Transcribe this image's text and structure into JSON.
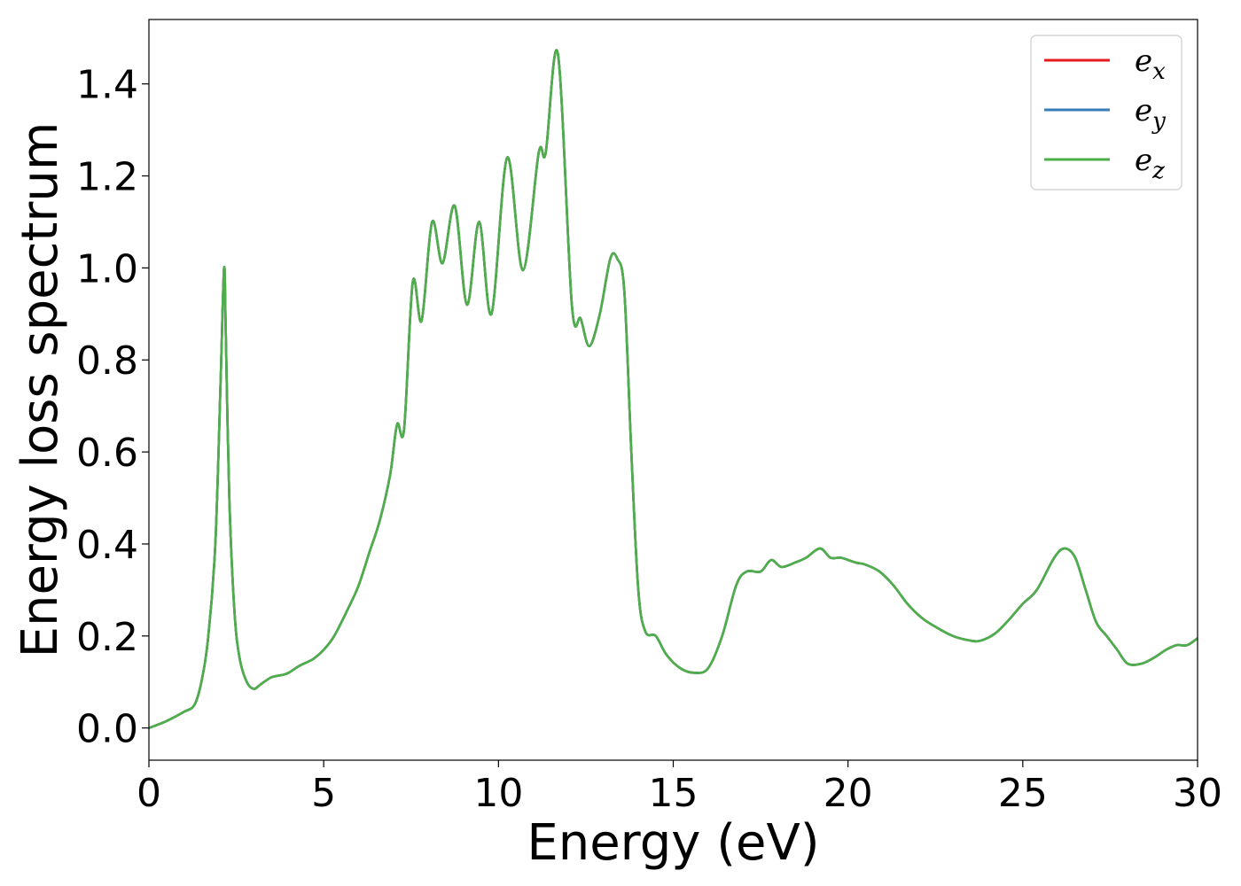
{
  "chart_data": {
    "type": "line",
    "title": "",
    "xlabel": "Energy (eV)",
    "ylabel": "Energy loss spectrum",
    "xlim": [
      0,
      30
    ],
    "ylim": [
      -0.07,
      1.54
    ],
    "xticks": [
      0,
      5,
      10,
      15,
      20,
      25,
      30
    ],
    "xtick_labels": [
      "0",
      "5",
      "10",
      "15",
      "20",
      "25",
      "30"
    ],
    "yticks": [
      0.0,
      0.2,
      0.4,
      0.6,
      0.8,
      1.0,
      1.2,
      1.4
    ],
    "ytick_labels": [
      "0.0",
      "0.2",
      "0.4",
      "0.6",
      "0.8",
      "1.0",
      "1.2",
      "1.4"
    ],
    "grid": false,
    "legend_position": "top-right",
    "x": [
      0.0,
      0.5,
      1.0,
      1.3,
      1.5,
      1.7,
      1.9,
      2.05,
      2.15,
      2.2,
      2.3,
      2.45,
      2.6,
      2.8,
      3.0,
      3.2,
      3.5,
      3.8,
      4.0,
      4.3,
      4.7,
      5.0,
      5.3,
      5.7,
      6.0,
      6.3,
      6.6,
      6.9,
      7.1,
      7.3,
      7.55,
      7.8,
      8.1,
      8.4,
      8.75,
      9.1,
      9.45,
      9.8,
      10.25,
      10.7,
      11.15,
      11.35,
      11.7,
      12.1,
      12.35,
      12.6,
      12.9,
      13.2,
      13.4,
      13.6,
      13.8,
      14.0,
      14.2,
      14.5,
      14.8,
      15.2,
      15.6,
      16.0,
      16.4,
      16.8,
      17.1,
      17.5,
      17.8,
      18.1,
      18.5,
      18.8,
      19.2,
      19.5,
      19.8,
      20.2,
      20.5,
      20.9,
      21.3,
      21.7,
      22.1,
      22.5,
      23.0,
      23.5,
      23.8,
      24.2,
      24.6,
      25.0,
      25.4,
      25.9,
      26.2,
      26.5,
      26.8,
      27.1,
      27.4,
      27.7,
      28.0,
      28.4,
      28.8,
      29.1,
      29.4,
      29.7,
      30.0
    ],
    "series": [
      {
        "name": "e_x",
        "color": "#e41a1c",
        "values": [
          0.0,
          0.015,
          0.035,
          0.05,
          0.1,
          0.2,
          0.4,
          0.75,
          1.0,
          0.85,
          0.5,
          0.25,
          0.15,
          0.1,
          0.085,
          0.095,
          0.11,
          0.115,
          0.12,
          0.135,
          0.15,
          0.17,
          0.2,
          0.26,
          0.31,
          0.38,
          0.45,
          0.55,
          0.66,
          0.65,
          0.97,
          0.885,
          1.1,
          1.01,
          1.135,
          0.92,
          1.1,
          0.9,
          1.24,
          0.995,
          1.25,
          1.25,
          1.465,
          0.92,
          0.89,
          0.83,
          0.9,
          1.02,
          1.02,
          0.95,
          0.6,
          0.3,
          0.21,
          0.2,
          0.16,
          0.13,
          0.12,
          0.13,
          0.2,
          0.31,
          0.34,
          0.34,
          0.365,
          0.35,
          0.36,
          0.37,
          0.39,
          0.37,
          0.37,
          0.36,
          0.355,
          0.34,
          0.31,
          0.27,
          0.24,
          0.22,
          0.2,
          0.19,
          0.19,
          0.205,
          0.235,
          0.27,
          0.3,
          0.37,
          0.39,
          0.37,
          0.3,
          0.23,
          0.2,
          0.17,
          0.14,
          0.14,
          0.155,
          0.17,
          0.18,
          0.18,
          0.195
        ]
      },
      {
        "name": "e_y",
        "color": "#377eb8",
        "values": [
          0.0,
          0.015,
          0.035,
          0.05,
          0.1,
          0.2,
          0.4,
          0.75,
          1.0,
          0.85,
          0.5,
          0.25,
          0.15,
          0.1,
          0.085,
          0.095,
          0.11,
          0.115,
          0.12,
          0.135,
          0.15,
          0.17,
          0.2,
          0.26,
          0.31,
          0.38,
          0.45,
          0.55,
          0.66,
          0.65,
          0.97,
          0.885,
          1.1,
          1.01,
          1.135,
          0.92,
          1.1,
          0.9,
          1.24,
          0.995,
          1.25,
          1.25,
          1.465,
          0.92,
          0.89,
          0.83,
          0.9,
          1.02,
          1.02,
          0.95,
          0.6,
          0.3,
          0.21,
          0.2,
          0.16,
          0.13,
          0.12,
          0.13,
          0.2,
          0.31,
          0.34,
          0.34,
          0.365,
          0.35,
          0.36,
          0.37,
          0.39,
          0.37,
          0.37,
          0.36,
          0.355,
          0.34,
          0.31,
          0.27,
          0.24,
          0.22,
          0.2,
          0.19,
          0.19,
          0.205,
          0.235,
          0.27,
          0.3,
          0.37,
          0.39,
          0.37,
          0.3,
          0.23,
          0.2,
          0.17,
          0.14,
          0.14,
          0.155,
          0.17,
          0.18,
          0.18,
          0.195
        ]
      },
      {
        "name": "e_z",
        "color": "#4daf4a",
        "values": [
          0.0,
          0.015,
          0.035,
          0.05,
          0.1,
          0.2,
          0.4,
          0.75,
          1.0,
          0.85,
          0.5,
          0.25,
          0.15,
          0.1,
          0.085,
          0.095,
          0.11,
          0.115,
          0.12,
          0.135,
          0.15,
          0.17,
          0.2,
          0.26,
          0.31,
          0.38,
          0.45,
          0.55,
          0.66,
          0.65,
          0.97,
          0.885,
          1.1,
          1.01,
          1.135,
          0.92,
          1.1,
          0.9,
          1.24,
          0.995,
          1.25,
          1.25,
          1.465,
          0.92,
          0.89,
          0.83,
          0.9,
          1.02,
          1.02,
          0.95,
          0.6,
          0.3,
          0.21,
          0.2,
          0.16,
          0.13,
          0.12,
          0.13,
          0.2,
          0.31,
          0.34,
          0.34,
          0.365,
          0.35,
          0.36,
          0.37,
          0.39,
          0.37,
          0.37,
          0.36,
          0.355,
          0.34,
          0.31,
          0.27,
          0.24,
          0.22,
          0.2,
          0.19,
          0.19,
          0.205,
          0.235,
          0.27,
          0.3,
          0.37,
          0.39,
          0.37,
          0.3,
          0.23,
          0.2,
          0.17,
          0.14,
          0.14,
          0.155,
          0.17,
          0.18,
          0.18,
          0.195
        ]
      }
    ],
    "legend": [
      {
        "base": "e",
        "sub": "x",
        "color": "#e41a1c"
      },
      {
        "base": "e",
        "sub": "y",
        "color": "#377eb8"
      },
      {
        "base": "e",
        "sub": "z",
        "color": "#4daf4a"
      }
    ]
  }
}
